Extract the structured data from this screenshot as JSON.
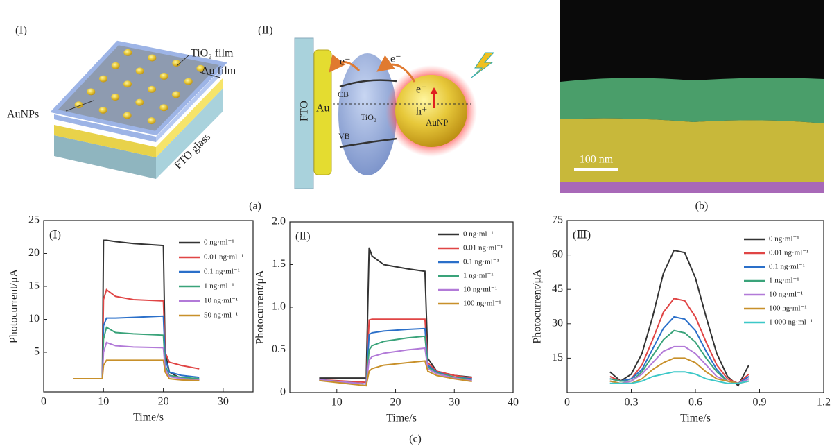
{
  "figure": {
    "panel_a1": "(Ⅰ)",
    "tio2_film": "TiO₂ film",
    "au_film": "Au film",
    "aunps": "AuNPs",
    "fto_glass": "FTO glass",
    "panel_a2": "(Ⅱ)",
    "fto": "FTO",
    "au": "Au",
    "e_left": "e⁻",
    "e_right": "e⁻",
    "cb": "CB",
    "tio2": "TiO₂",
    "vb": "VB",
    "e_np": "e⁻",
    "h_np": "h⁺",
    "aunp": "AuNP",
    "scale_bar": "100 nm",
    "caption_a": "(a)",
    "caption_b": "(b)",
    "caption_c": "(c)"
  },
  "chart_data": [
    {
      "type": "line",
      "panel_label": "(Ⅰ)",
      "xlabel": "Time/s",
      "ylabel": "Photocurrent/μA",
      "legend": "upper right",
      "x": [
        5,
        9.8,
        10,
        10.5,
        12,
        15,
        20,
        20.3,
        21,
        23,
        26
      ],
      "xlim": [
        0,
        35
      ],
      "xticks": [
        0,
        10,
        20,
        30
      ],
      "ylim": [
        -1,
        25
      ],
      "yticks": [
        5,
        10,
        15,
        20,
        25
      ],
      "series": [
        {
          "name": "0 ng·ml⁻¹",
          "color": "#333333",
          "values": [
            1,
            1,
            22,
            22,
            21.8,
            21.5,
            21.2,
            5,
            2,
            1,
            0.8
          ]
        },
        {
          "name": "0.01 ng·ml⁻¹",
          "color": "#e04545",
          "values": [
            1,
            1,
            13,
            14.5,
            13.5,
            13,
            12.8,
            5,
            3.5,
            3,
            2.5
          ]
        },
        {
          "name": "0.1 ng·ml⁻¹",
          "color": "#2a6fc9",
          "values": [
            1,
            1,
            9,
            10.2,
            10.2,
            10.3,
            10.5,
            4,
            2,
            1.5,
            1.2
          ]
        },
        {
          "name": "1 ng·ml⁻¹",
          "color": "#3aa37a",
          "values": [
            1,
            1,
            7,
            8.8,
            8,
            7.8,
            7.6,
            3,
            1.5,
            1.2,
            1
          ]
        },
        {
          "name": "10 ng·ml⁻¹",
          "color": "#b27ad8",
          "values": [
            1,
            1,
            5,
            6.5,
            6,
            5.8,
            5.7,
            2.5,
            1.3,
            1,
            0.8
          ]
        },
        {
          "name": "50 ng·ml⁻¹",
          "color": "#c8902a",
          "values": [
            1,
            1,
            3,
            3.8,
            3.8,
            3.8,
            3.8,
            2,
            1,
            0.8,
            0.7
          ]
        }
      ]
    },
    {
      "type": "line",
      "panel_label": "(Ⅱ)",
      "xlabel": "Time/s",
      "ylabel": "Photocurrent/μA",
      "legend": "upper right",
      "x": [
        7,
        15,
        15.5,
        16,
        18,
        22,
        25,
        25.5,
        27,
        30,
        33
      ],
      "xlim": [
        2,
        40
      ],
      "xticks": [
        10,
        20,
        30,
        40
      ],
      "ylim": [
        0,
        2
      ],
      "yticks": [
        0,
        0.5,
        {
          "value": 1,
          "label": "1.0"
        },
        1.5,
        {
          "value": 2,
          "label": "2.0"
        }
      ],
      "series": [
        {
          "name": "0 ng·ml⁻¹",
          "color": "#333333",
          "values": [
            0.17,
            0.17,
            1.7,
            1.6,
            1.5,
            1.45,
            1.42,
            0.4,
            0.25,
            0.2,
            0.18
          ]
        },
        {
          "name": "0.01 ng·ml⁻¹",
          "color": "#e04545",
          "values": [
            0.15,
            0.12,
            0.85,
            0.86,
            0.86,
            0.86,
            0.86,
            0.35,
            0.25,
            0.2,
            0.17
          ]
        },
        {
          "name": "0.1 ng·ml⁻¹",
          "color": "#2a6fc9",
          "values": [
            0.15,
            0.1,
            0.68,
            0.7,
            0.72,
            0.74,
            0.75,
            0.32,
            0.24,
            0.18,
            0.16
          ]
        },
        {
          "name": "1 ng·ml⁻¹",
          "color": "#3aa37a",
          "values": [
            0.15,
            0.1,
            0.5,
            0.55,
            0.6,
            0.64,
            0.66,
            0.3,
            0.23,
            0.18,
            0.15
          ]
        },
        {
          "name": "10 ng·ml⁻¹",
          "color": "#b27ad8",
          "values": [
            0.15,
            0.1,
            0.38,
            0.42,
            0.46,
            0.5,
            0.52,
            0.28,
            0.22,
            0.17,
            0.14
          ]
        },
        {
          "name": "100 ng·ml⁻¹",
          "color": "#c8902a",
          "values": [
            0.14,
            0.08,
            0.25,
            0.28,
            0.32,
            0.35,
            0.37,
            0.25,
            0.2,
            0.16,
            0.13
          ]
        }
      ]
    },
    {
      "type": "line",
      "panel_label": "(Ⅲ)",
      "xlabel": "Time/s",
      "ylabel": "Photocurrent/μA",
      "legend": "upper right",
      "x": [
        0.2,
        0.25,
        0.3,
        0.35,
        0.4,
        0.45,
        0.5,
        0.55,
        0.6,
        0.65,
        0.7,
        0.75,
        0.8,
        0.85
      ],
      "xlim": [
        0,
        1.2
      ],
      "xticks": [
        0,
        0.3,
        0.6,
        0.9,
        1.2
      ],
      "ylim": [
        0,
        75
      ],
      "yticks": [
        15,
        30,
        45,
        60,
        75
      ],
      "series": [
        {
          "name": "0 ng·ml⁻¹",
          "color": "#333333",
          "values": [
            9,
            5,
            8,
            17,
            33,
            52,
            62,
            61,
            50,
            33,
            17,
            7,
            3,
            12
          ]
        },
        {
          "name": "0.01 ng·ml⁻¹",
          "color": "#e04545",
          "values": [
            7,
            5,
            6,
            12,
            23,
            35,
            41,
            40,
            33,
            22,
            12,
            6,
            4,
            8
          ]
        },
        {
          "name": "0.1 ng·ml⁻¹",
          "color": "#2a6fc9",
          "values": [
            6,
            5,
            6,
            10,
            19,
            28,
            33,
            32,
            27,
            18,
            10,
            5,
            4,
            7
          ]
        },
        {
          "name": "1 ng·ml⁻¹",
          "color": "#3aa37a",
          "values": [
            6,
            5,
            5,
            9,
            16,
            23,
            27,
            26,
            22,
            15,
            9,
            5,
            4,
            6
          ]
        },
        {
          "name": "10 ng·ml⁻¹",
          "color": "#b27ad8",
          "values": [
            5,
            4,
            5,
            8,
            13,
            18,
            20,
            20,
            17,
            12,
            7,
            5,
            4,
            6
          ]
        },
        {
          "name": "100 ng·ml⁻¹",
          "color": "#c8902a",
          "values": [
            5,
            4,
            4,
            6,
            10,
            13,
            15,
            15,
            13,
            9,
            6,
            5,
            4,
            5
          ]
        },
        {
          "name": "1 000 ng·ml⁻¹",
          "color": "#3cc8c8",
          "values": [
            4,
            4,
            4,
            5,
            7,
            8,
            9,
            9,
            8,
            6,
            5,
            4,
            4,
            5
          ]
        }
      ]
    }
  ]
}
